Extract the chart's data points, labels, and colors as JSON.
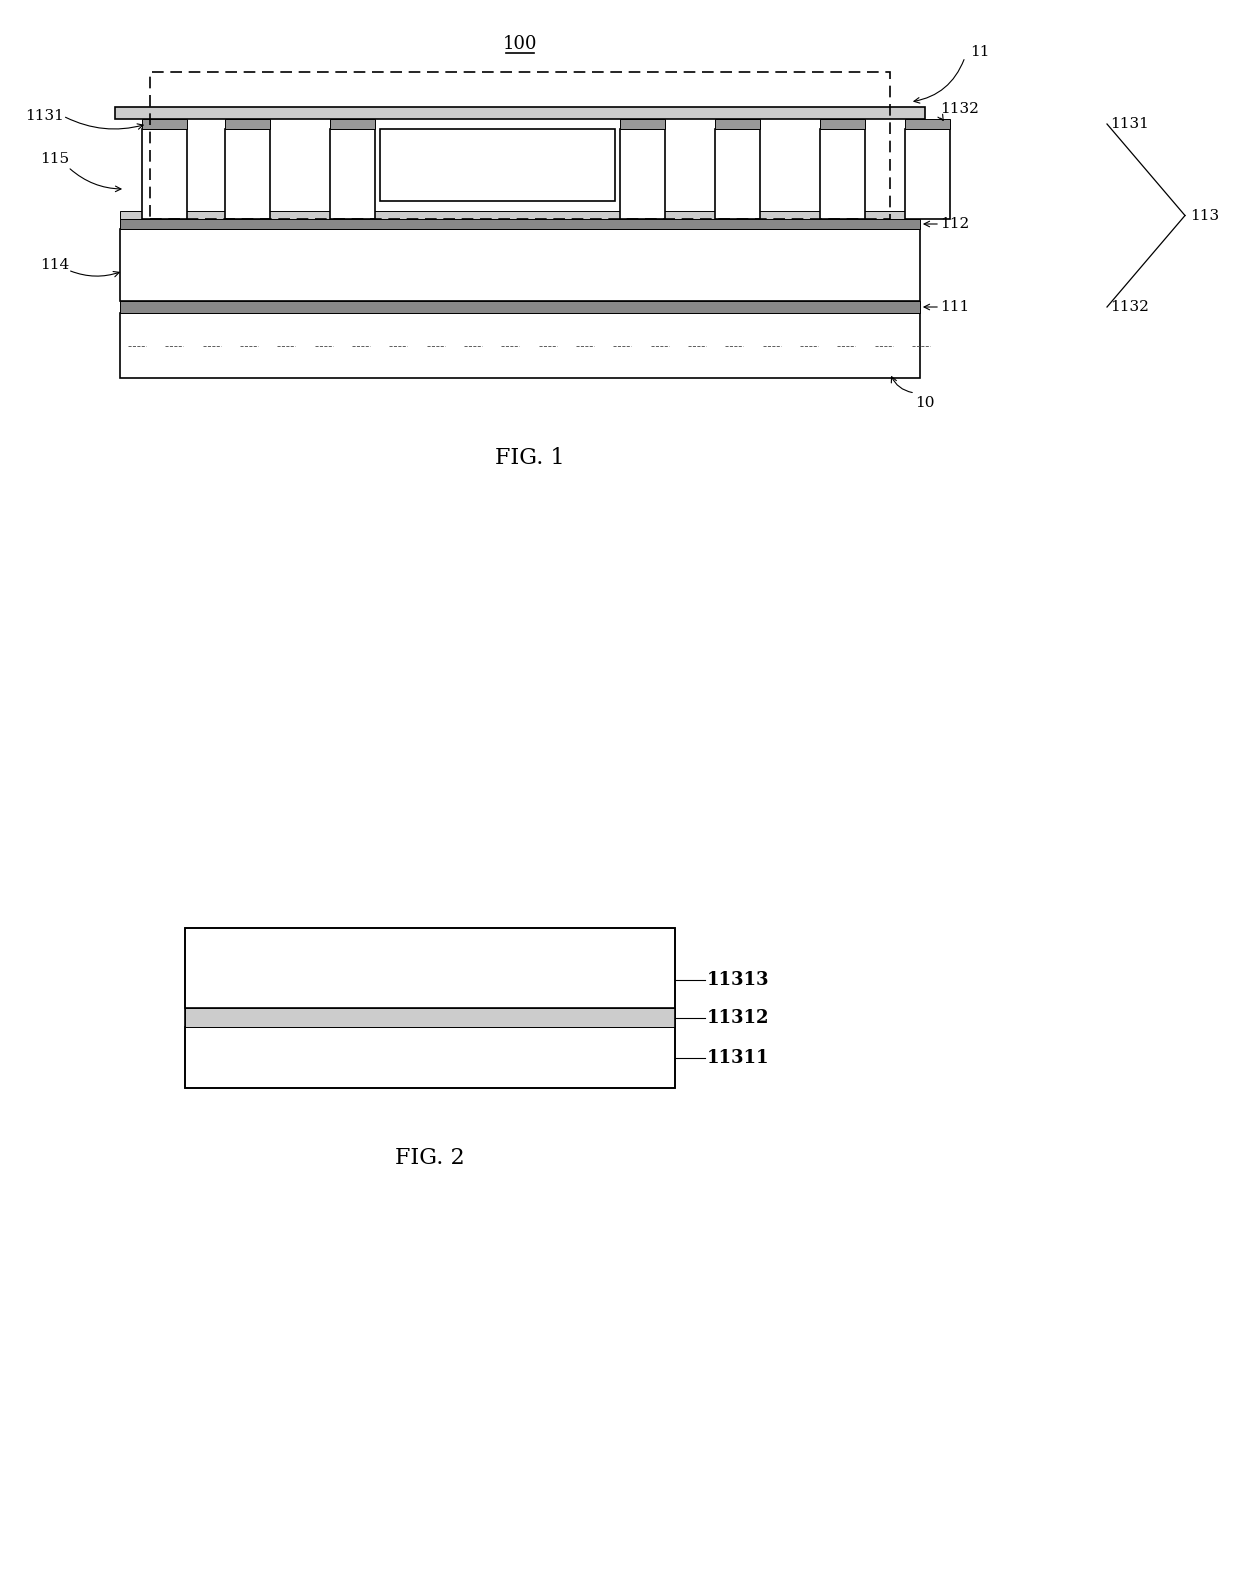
{
  "colors": {
    "black": "#000000",
    "white": "#ffffff",
    "bg": "#ffffff",
    "gray_dark": "#555555",
    "gray_med": "#888888",
    "gray_light": "#bbbbbb"
  },
  "lw_thin": 0.7,
  "lw_med": 1.2,
  "lw_thick": 1.6,
  "fig1_caption": "FIG. 1",
  "fig2_caption": "FIG. 2",
  "labels_fig1": {
    "100": "100",
    "11": "11",
    "1131_left": "1131",
    "1132_right": "1132",
    "115": "115",
    "112": "112",
    "1131_far": "1131",
    "113": "113",
    "1132_far": "1132",
    "114": "114",
    "111": "111",
    "10": "10"
  },
  "labels_fig2": {
    "11313": "11313",
    "11312": "11312",
    "11311": "11311"
  }
}
